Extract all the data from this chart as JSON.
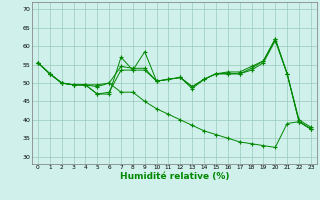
{
  "xlabel": "Humidité relative (%)",
  "background_color": "#cff0eb",
  "grid_color": "#99ccbb",
  "line_color": "#008800",
  "xlim": [
    -0.5,
    23.5
  ],
  "ylim": [
    28,
    72
  ],
  "yticks": [
    30,
    35,
    40,
    45,
    50,
    55,
    60,
    65,
    70
  ],
  "xticks": [
    0,
    1,
    2,
    3,
    4,
    5,
    6,
    7,
    8,
    9,
    10,
    11,
    12,
    13,
    14,
    15,
    16,
    17,
    18,
    19,
    20,
    21,
    22,
    23
  ],
  "series": [
    [
      55.5,
      52.5,
      50.0,
      49.5,
      49.5,
      47.0,
      47.0,
      57.0,
      53.5,
      58.5,
      50.5,
      51.0,
      51.5,
      48.5,
      51.0,
      52.5,
      52.5,
      52.5,
      53.5,
      55.5,
      61.5,
      52.5,
      39.5,
      37.5
    ],
    [
      55.5,
      52.5,
      50.0,
      49.5,
      49.5,
      47.0,
      47.5,
      53.5,
      53.5,
      53.5,
      50.5,
      51.0,
      51.5,
      49.0,
      51.0,
      52.5,
      52.5,
      52.5,
      54.0,
      56.0,
      62.0,
      52.5,
      39.5,
      37.5
    ],
    [
      55.5,
      52.5,
      50.0,
      49.5,
      49.5,
      49.0,
      50.0,
      54.5,
      54.0,
      54.0,
      50.5,
      51.0,
      51.5,
      49.0,
      51.0,
      52.5,
      53.0,
      53.0,
      54.5,
      56.0,
      62.0,
      52.5,
      40.0,
      38.0
    ],
    [
      55.5,
      52.5,
      50.0,
      49.5,
      49.5,
      49.5,
      50.0,
      47.5,
      47.5,
      45.0,
      43.0,
      41.5,
      40.0,
      38.5,
      37.0,
      36.0,
      35.0,
      34.0,
      33.5,
      33.0,
      32.5,
      39.0,
      39.5,
      37.5
    ]
  ]
}
